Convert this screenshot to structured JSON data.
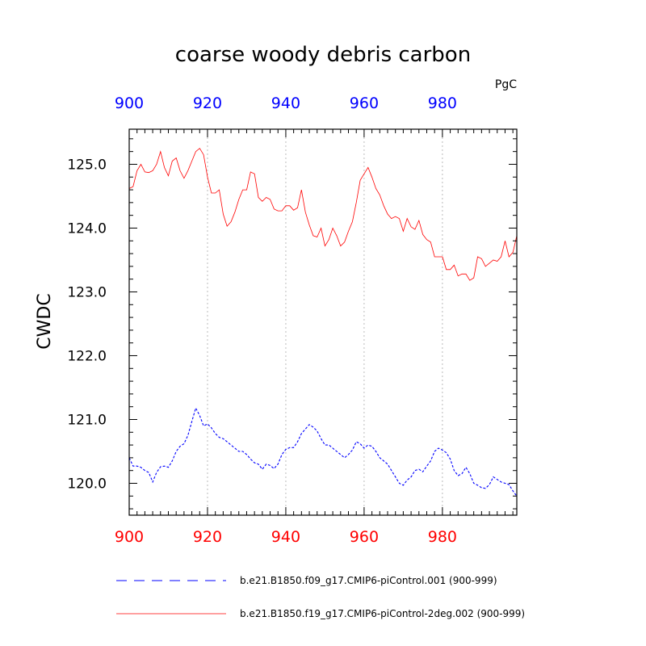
{
  "chart_data": {
    "type": "line",
    "title": "coarse woody debris carbon",
    "units": "PgC",
    "ylabel": "CWDC",
    "xlabel": "",
    "xlim": [
      900,
      999
    ],
    "ylim": [
      119.5,
      125.55
    ],
    "x_ticks": [
      900,
      920,
      940,
      960,
      980
    ],
    "x_tick_labels": [
      "900",
      "920",
      "940",
      "960",
      "980"
    ],
    "y_ticks": [
      120.0,
      121.0,
      122.0,
      123.0,
      124.0,
      125.0
    ],
    "y_tick_labels": [
      "120.0",
      "121.0",
      "122.0",
      "123.0",
      "124.0",
      "125.0"
    ],
    "grid": "vertical dotted at x ticks",
    "legend_position": "bottom",
    "colors": {
      "bottom_axis_labels": "#ff0000",
      "top_axis_labels": "#0000ff",
      "grid": "#bbbbbb"
    },
    "series": [
      {
        "name": "b.e21.B1850.f09_g17.CMIP6-piControl.001 (900-999)",
        "color": "#0000ff",
        "style": "dashed",
        "x": [
          900,
          901,
          902,
          903,
          904,
          905,
          906,
          907,
          908,
          909,
          910,
          911,
          912,
          913,
          914,
          915,
          916,
          917,
          918,
          919,
          920,
          921,
          922,
          923,
          924,
          925,
          926,
          927,
          928,
          929,
          930,
          931,
          932,
          933,
          934,
          935,
          936,
          937,
          938,
          939,
          940,
          941,
          942,
          943,
          944,
          945,
          946,
          947,
          948,
          949,
          950,
          951,
          952,
          953,
          954,
          955,
          956,
          957,
          958,
          959,
          960,
          961,
          962,
          963,
          964,
          965,
          966,
          967,
          968,
          969,
          970,
          971,
          972,
          973,
          974,
          975,
          976,
          977,
          978,
          979,
          980,
          981,
          982,
          983,
          984,
          985,
          986,
          987,
          988,
          989,
          990,
          991,
          992,
          993,
          994,
          995,
          996,
          997,
          998,
          999
        ],
        "values": [
          120.4,
          120.27,
          120.27,
          120.25,
          120.2,
          120.17,
          120.02,
          120.17,
          120.26,
          120.27,
          120.25,
          120.35,
          120.5,
          120.58,
          120.62,
          120.75,
          120.97,
          121.18,
          121.06,
          120.9,
          120.93,
          120.87,
          120.78,
          120.72,
          120.7,
          120.65,
          120.6,
          120.55,
          120.5,
          120.5,
          120.45,
          120.38,
          120.32,
          120.3,
          120.22,
          120.3,
          120.28,
          120.23,
          120.3,
          120.45,
          120.53,
          120.56,
          120.56,
          120.65,
          120.78,
          120.85,
          120.92,
          120.88,
          120.82,
          120.7,
          120.6,
          120.6,
          120.55,
          120.5,
          120.45,
          120.4,
          120.45,
          120.52,
          120.65,
          120.62,
          120.55,
          120.6,
          120.58,
          120.5,
          120.4,
          120.35,
          120.3,
          120.2,
          120.1,
          120.0,
          119.97,
          120.05,
          120.1,
          120.2,
          120.22,
          120.18,
          120.27,
          120.35,
          120.5,
          120.55,
          120.52,
          120.48,
          120.38,
          120.2,
          120.12,
          120.15,
          120.25,
          120.15,
          120.0,
          119.97,
          119.93,
          119.92,
          119.98,
          120.1,
          120.06,
          120.02,
          120.0,
          119.98,
          119.88,
          119.8
        ]
      },
      {
        "name": "b.e21.B1850.f19_g17.CMIP6-piControl-2deg.002 (900-999)",
        "color": "#ff0000",
        "style": "solid",
        "x": [
          900,
          901,
          902,
          903,
          904,
          905,
          906,
          907,
          908,
          909,
          910,
          911,
          912,
          913,
          914,
          915,
          916,
          917,
          918,
          919,
          920,
          921,
          922,
          923,
          924,
          925,
          926,
          927,
          928,
          929,
          930,
          931,
          932,
          933,
          934,
          935,
          936,
          937,
          938,
          939,
          940,
          941,
          942,
          943,
          944,
          945,
          946,
          947,
          948,
          949,
          950,
          951,
          952,
          953,
          954,
          955,
          956,
          957,
          958,
          959,
          960,
          961,
          962,
          963,
          964,
          965,
          966,
          967,
          968,
          969,
          970,
          971,
          972,
          973,
          974,
          975,
          976,
          977,
          978,
          979,
          980,
          981,
          982,
          983,
          984,
          985,
          986,
          987,
          988,
          989,
          990,
          991,
          992,
          993,
          994,
          995,
          996,
          997,
          998,
          999
        ],
        "values": [
          124.62,
          124.65,
          124.9,
          125.0,
          124.88,
          124.87,
          124.9,
          125.0,
          125.2,
          124.95,
          124.82,
          125.05,
          125.1,
          124.9,
          124.78,
          124.9,
          125.05,
          125.2,
          125.25,
          125.15,
          124.8,
          124.55,
          124.55,
          124.6,
          124.22,
          124.03,
          124.1,
          124.25,
          124.45,
          124.6,
          124.6,
          124.88,
          124.85,
          124.48,
          124.42,
          124.48,
          124.45,
          124.3,
          124.27,
          124.27,
          124.35,
          124.35,
          124.28,
          124.32,
          124.6,
          124.25,
          124.05,
          123.88,
          123.86,
          124.0,
          123.72,
          123.82,
          124.0,
          123.88,
          123.72,
          123.78,
          123.95,
          124.1,
          124.4,
          124.75,
          124.85,
          124.95,
          124.8,
          124.62,
          124.52,
          124.35,
          124.22,
          124.15,
          124.18,
          124.15,
          123.95,
          124.15,
          124.02,
          123.98,
          124.12,
          123.9,
          123.82,
          123.78,
          123.55,
          123.55,
          123.55,
          123.35,
          123.35,
          123.42,
          123.25,
          123.28,
          123.28,
          123.18,
          123.22,
          123.55,
          123.52,
          123.4,
          123.45,
          123.5,
          123.48,
          123.55,
          123.8,
          123.55,
          123.62,
          123.88
        ]
      }
    ]
  }
}
